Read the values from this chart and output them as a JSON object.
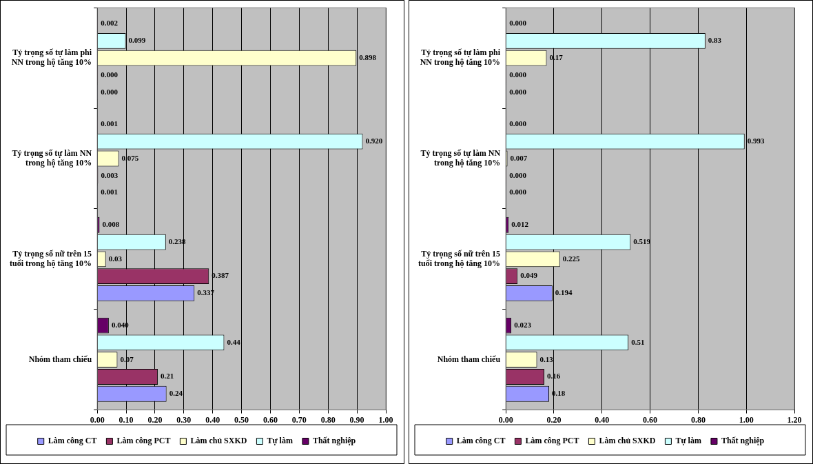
{
  "chart_data": [
    {
      "type": "bar",
      "orientation": "horizontal",
      "categories": [
        "Tỷ trọng số tự làm phi NN trong hộ tăng 10%",
        "Tỷ trọng số tự làm NN trong hộ tăng 10%",
        "Tỷ trọng số nữ trên 15 tuổi trong hộ tăng 10%",
        "Nhóm tham chiếu"
      ],
      "series": [
        {
          "name": "Làm công CT",
          "color": "#9999ff",
          "values": [
            0,
            0.001,
            0.337,
            0.24
          ],
          "value_labels": [
            "0.000",
            "0.001",
            "0.337",
            "0.24"
          ]
        },
        {
          "name": "Làm công PCT",
          "color": "#993366",
          "values": [
            0,
            0.003,
            0.387,
            0.21
          ],
          "value_labels": [
            "0.000",
            "0.003",
            "0.387",
            "0.21"
          ]
        },
        {
          "name": "Làm chủ SXKD",
          "color": "#ffffcc",
          "values": [
            0.898,
            0.075,
            0.03,
            0.07
          ],
          "value_labels": [
            "0.898",
            "0.075",
            "0.03",
            "0.07"
          ]
        },
        {
          "name": "Tự làm",
          "color": "#ccffff",
          "values": [
            0.099,
            0.92,
            0.238,
            0.44
          ],
          "value_labels": [
            "0.099",
            "0.920",
            "0.238",
            "0.44"
          ]
        },
        {
          "name": "Thất nghiệp",
          "color": "#660066",
          "values": [
            0.002,
            0.001,
            0.008,
            0.04
          ],
          "value_labels": [
            "0.002",
            "0.001",
            "0.008",
            "0.040"
          ]
        }
      ],
      "xlim": [
        0,
        1
      ],
      "xticks": [
        {
          "value": 0,
          "label": "0.00"
        },
        {
          "value": 0.1,
          "label": "0.10"
        },
        {
          "value": 0.2,
          "label": "0.20"
        },
        {
          "value": 0.3,
          "label": "0.30"
        },
        {
          "value": 0.4,
          "label": "0.40"
        },
        {
          "value": 0.5,
          "label": "0.50"
        },
        {
          "value": 0.6,
          "label": "0.60"
        },
        {
          "value": 0.7,
          "label": "0.70"
        },
        {
          "value": 0.8,
          "label": "0.80"
        },
        {
          "value": 0.9,
          "label": "0.90"
        },
        {
          "value": 1,
          "label": "1.00"
        }
      ],
      "grid": "x",
      "legend": "bottom"
    },
    {
      "type": "bar",
      "orientation": "horizontal",
      "categories": [
        "Tỷ trọng số tự làm phi NN trong hộ tăng 10%",
        "Tỷ trọng số tự làm NN trong hộ tăng 10%",
        "Tỷ trọng số nữ trên 15 tuổi trong hộ tăng 10%",
        "Nhóm tham chiếu"
      ],
      "series": [
        {
          "name": "Làm công CT",
          "color": "#9999ff",
          "values": [
            0,
            0,
            0.194,
            0.18
          ],
          "value_labels": [
            "0.000",
            "0.000",
            "0.194",
            "0.18"
          ]
        },
        {
          "name": "Làm công PCT",
          "color": "#993366",
          "values": [
            0,
            0,
            0.049,
            0.16
          ],
          "value_labels": [
            "0.000",
            "0.000",
            "0.049",
            "0.16"
          ]
        },
        {
          "name": "Làm chủ SXKD",
          "color": "#ffffcc",
          "values": [
            0.17,
            0.007,
            0.225,
            0.13
          ],
          "value_labels": [
            "0.17",
            "0.007",
            "0.225",
            "0.13"
          ]
        },
        {
          "name": "Tự làm",
          "color": "#ccffff",
          "values": [
            0.83,
            0.993,
            0.519,
            0.51
          ],
          "value_labels": [
            "0.83",
            "0.993",
            "0.519",
            "0.51"
          ]
        },
        {
          "name": "Thất nghiệp",
          "color": "#660066",
          "values": [
            0,
            0,
            0.012,
            0.023
          ],
          "value_labels": [
            "0.000",
            "0.000",
            "0.012",
            "0.023"
          ]
        }
      ],
      "xlim": [
        0,
        1.2
      ],
      "xticks": [
        {
          "value": 0,
          "label": "0.00"
        },
        {
          "value": 0.2,
          "label": "0.20"
        },
        {
          "value": 0.4,
          "label": "0.40"
        },
        {
          "value": 0.6,
          "label": "0.60"
        },
        {
          "value": 0.8,
          "label": "0.80"
        },
        {
          "value": 1,
          "label": "1.00"
        },
        {
          "value": 1.2,
          "label": "1.20"
        }
      ],
      "grid": "x",
      "legend": "bottom"
    }
  ]
}
